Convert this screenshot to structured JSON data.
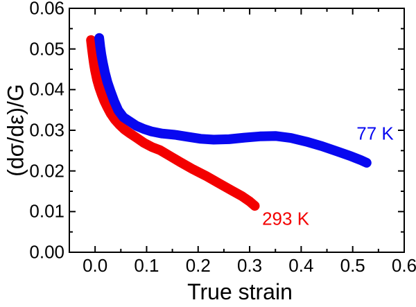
{
  "figure": {
    "background": "#ffffff",
    "frame_color": "#000000",
    "text_color": "#000000"
  },
  "chart_data": {
    "type": "line",
    "title": "",
    "xlabel": "True strain",
    "ylabel": "(dσ/dε)/G",
    "xlim": [
      -0.05,
      0.6
    ],
    "ylim": [
      0.0,
      0.06
    ],
    "grid": false,
    "legend_position": "inline-annotations",
    "tick_style": "inward, mirrored on all four sides",
    "x_major_ticks": [
      0.0,
      0.1,
      0.2,
      0.3,
      0.4,
      0.5,
      0.6
    ],
    "x_major_labels": [
      "0.0",
      "0.1",
      "0.2",
      "0.3",
      "0.4",
      "0.5",
      "0.6"
    ],
    "x_minor_ticks": [
      0.05,
      0.15,
      0.25,
      0.35,
      0.45,
      0.55
    ],
    "y_major_ticks": [
      0.0,
      0.01,
      0.02,
      0.03,
      0.04,
      0.05,
      0.06
    ],
    "y_major_labels": [
      "0.00",
      "0.01",
      "0.02",
      "0.03",
      "0.04",
      "0.05",
      "0.06"
    ],
    "y_minor_ticks": [
      0.005,
      0.015,
      0.025,
      0.035,
      0.045,
      0.055
    ],
    "series": [
      {
        "name": "293 K",
        "color": "#f30000",
        "line_width": 14,
        "points": [
          [
            -0.008,
            0.0522
          ],
          [
            -0.006,
            0.05
          ],
          [
            -0.004,
            0.048
          ],
          [
            -0.002,
            0.0462
          ],
          [
            0.0,
            0.0447
          ],
          [
            0.004,
            0.0424
          ],
          [
            0.008,
            0.0406
          ],
          [
            0.013,
            0.0388
          ],
          [
            0.018,
            0.0372
          ],
          [
            0.024,
            0.0356
          ],
          [
            0.03,
            0.0342
          ],
          [
            0.038,
            0.0327
          ],
          [
            0.047,
            0.0314
          ],
          [
            0.057,
            0.0302
          ],
          [
            0.068,
            0.0292
          ],
          [
            0.08,
            0.0282
          ],
          [
            0.095,
            0.0269
          ],
          [
            0.11,
            0.0259
          ],
          [
            0.126,
            0.0251
          ],
          [
            0.145,
            0.0237
          ],
          [
            0.165,
            0.0222
          ],
          [
            0.19,
            0.0204
          ],
          [
            0.215,
            0.0188
          ],
          [
            0.24,
            0.017
          ],
          [
            0.265,
            0.0152
          ],
          [
            0.285,
            0.0138
          ],
          [
            0.3,
            0.0125
          ],
          [
            0.31,
            0.0114
          ]
        ]
      },
      {
        "name": "77 K",
        "color": "#0808f0",
        "line_width": 14,
        "points": [
          [
            0.008,
            0.0527
          ],
          [
            0.01,
            0.0505
          ],
          [
            0.012,
            0.0487
          ],
          [
            0.015,
            0.0466
          ],
          [
            0.019,
            0.0442
          ],
          [
            0.024,
            0.0418
          ],
          [
            0.03,
            0.0396
          ],
          [
            0.037,
            0.0372
          ],
          [
            0.045,
            0.0349
          ],
          [
            0.055,
            0.0332
          ],
          [
            0.067,
            0.0322
          ],
          [
            0.08,
            0.0311
          ],
          [
            0.095,
            0.0303
          ],
          [
            0.11,
            0.0297
          ],
          [
            0.13,
            0.0292
          ],
          [
            0.155,
            0.0289
          ],
          [
            0.18,
            0.0284
          ],
          [
            0.205,
            0.0279
          ],
          [
            0.23,
            0.0277
          ],
          [
            0.26,
            0.0278
          ],
          [
            0.29,
            0.0282
          ],
          [
            0.32,
            0.0285
          ],
          [
            0.35,
            0.0286
          ],
          [
            0.38,
            0.0281
          ],
          [
            0.41,
            0.0272
          ],
          [
            0.44,
            0.0261
          ],
          [
            0.47,
            0.0248
          ],
          [
            0.495,
            0.0237
          ],
          [
            0.515,
            0.0227
          ],
          [
            0.527,
            0.022
          ]
        ]
      }
    ],
    "annotations": [
      {
        "text": "77 K",
        "color": "#0808f0",
        "x": 0.5435,
        "y": 0.0292
      },
      {
        "text": "293 K",
        "color": "#f30000",
        "x": 0.37,
        "y": 0.0082
      }
    ]
  }
}
